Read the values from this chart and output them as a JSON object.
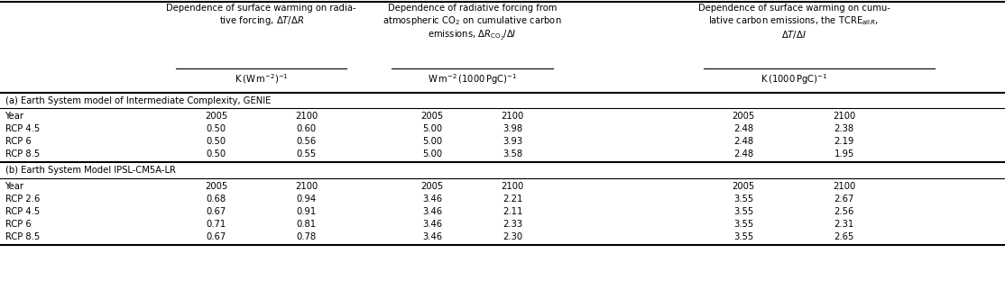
{
  "header1": "Dependence of surface warming on radia-\ntive forcing, ΔT/ΔR",
  "header2": "Dependence of radiative forcing from\natmospheric CO₂ on cumulative carbon\nemissions, ΔRₙₒ₂/ΔI",
  "header3": "Dependence of surface warming on cumu-\nlative carbon emissions, the TCREₐₗₗ R,\nΔT/ΔI",
  "subheader1": "K (W m⁻²)⁻¹",
  "subheader2": "W m⁻² (1000 PgC)⁻¹",
  "subheader3": "K (1000 PgC)⁻¹",
  "section_a_label": "(a) Earth System model of Intermediate Complexity, GENIE",
  "section_b_label": "(b) Earth System Model IPSL-CM5A-LR",
  "row_header_a": [
    "Year",
    "RCP 4.5",
    "RCP 6",
    "RCP 8.5"
  ],
  "row_header_b": [
    "Year",
    "RCP 2.6",
    "RCP 4.5",
    "RCP 6",
    "RCP 8.5"
  ],
  "data_a": [
    [
      "2005",
      "2100",
      "2005",
      "2100",
      "2005",
      "2100"
    ],
    [
      "0.50",
      "0.60",
      "5.00",
      "3.98",
      "2.48",
      "2.38"
    ],
    [
      "0.50",
      "0.56",
      "5.00",
      "3.93",
      "2.48",
      "2.19"
    ],
    [
      "0.50",
      "0.55",
      "5.00",
      "3.58",
      "2.48",
      "1.95"
    ]
  ],
  "data_b": [
    [
      "2005",
      "2100",
      "2005",
      "2100",
      "2005",
      "2100"
    ],
    [
      "0.68",
      "0.94",
      "3.46",
      "2.21",
      "3.55",
      "2.67"
    ],
    [
      "0.67",
      "0.91",
      "3.46",
      "2.11",
      "3.55",
      "2.56"
    ],
    [
      "0.71",
      "0.81",
      "3.46",
      "2.33",
      "3.55",
      "2.31"
    ],
    [
      "0.67",
      "0.78",
      "3.46",
      "2.30",
      "3.55",
      "2.65"
    ]
  ],
  "text_color": "#000000",
  "bg_color": "#ffffff",
  "line_color": "#000000",
  "header2_math": "Dependence of radiative forcing from\natmospheric CO$_2$ on cumulative carbon\nemissions, $\\Delta R_{\\mathrm{CO_2}}/\\Delta I$",
  "header1_math": "Dependence of surface warming on radia-\ntive forcing, $\\Delta T/\\Delta R$",
  "header3_math": "Dependence of surface warming on cumu-\nlative carbon emissions, the TCRE$_{\\mathrm{all}\\,R}$,\n$\\Delta T/\\Delta I$"
}
